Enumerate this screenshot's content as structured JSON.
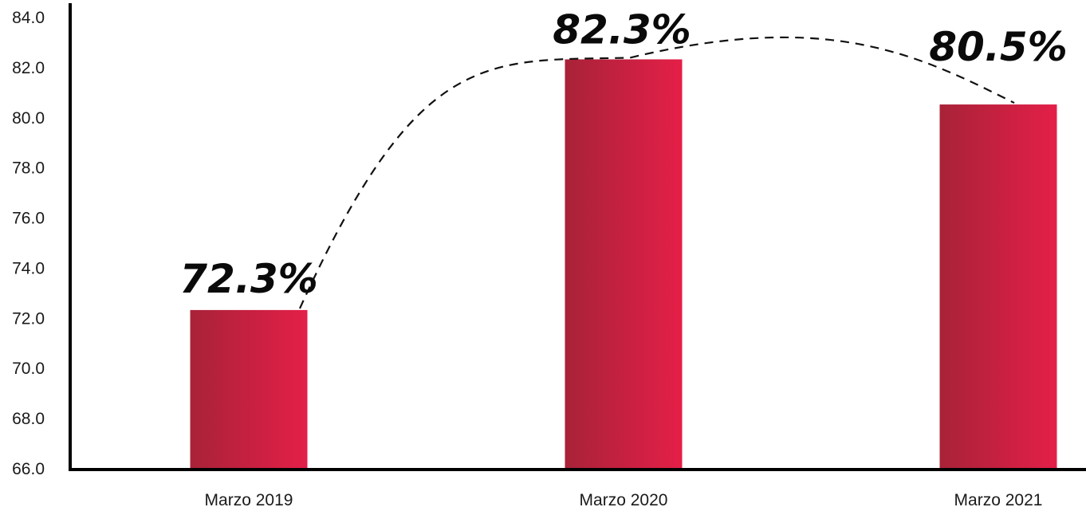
{
  "chart_data": {
    "type": "bar",
    "categories": [
      "Marzo 2019",
      "Marzo 2020",
      "Marzo 2021"
    ],
    "values": [
      72.3,
      82.3,
      80.5
    ],
    "data_labels": [
      "72.3%",
      "82.3%",
      "80.5%"
    ],
    "ylim": [
      66.0,
      84.0
    ],
    "yticks": [
      "66.0",
      "68.0",
      "70.0",
      "72.0",
      "74.0",
      "76.0",
      "78.0",
      "80.0",
      "82.0",
      "84.0"
    ],
    "title": "",
    "xlabel": "",
    "ylabel": "",
    "grid": false,
    "legend": "none",
    "trend_line": "dashed curve over bars",
    "colors": {
      "bar_dark": "#a82238",
      "bar_light": "#e41f48",
      "axis": "#000000",
      "trend": "#111111"
    }
  }
}
